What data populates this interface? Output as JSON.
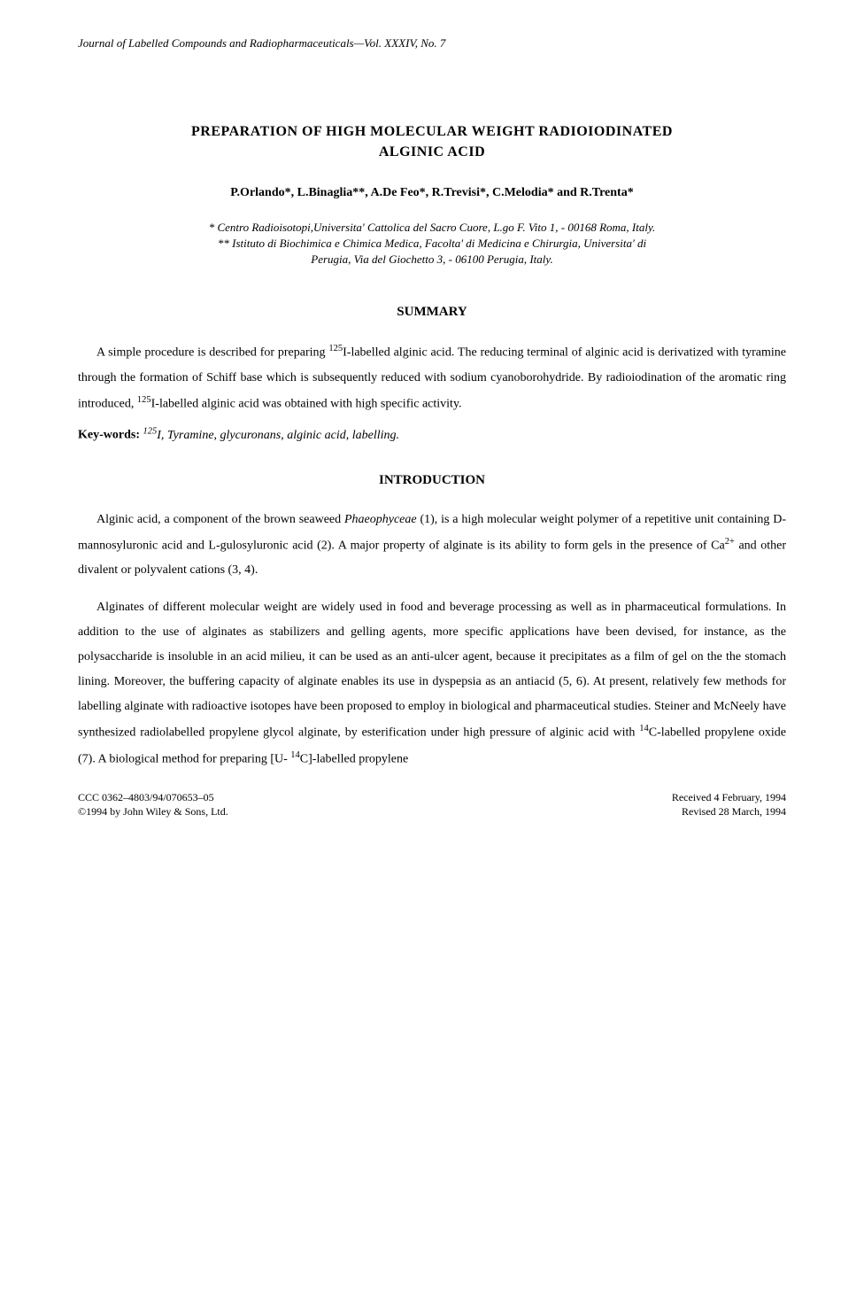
{
  "journal": {
    "header": "Journal of Labelled Compounds and Radiopharmaceuticals—Vol. XXXIV, No. 7"
  },
  "title": {
    "line1": "PREPARATION OF HIGH MOLECULAR WEIGHT RADIOIODINATED",
    "line2": "ALGINIC ACID"
  },
  "authors": "P.Orlando*, L.Binaglia**, A.De Feo*, R.Trevisi*, C.Melodia* and R.Trenta*",
  "affiliations": {
    "line1": "* Centro Radioisotopi,Universita' Cattolica del Sacro Cuore, L.go F. Vito 1, - 00168 Roma, Italy.",
    "line2": "** Istituto di Biochimica e Chimica Medica, Facolta' di Medicina e Chirurgia, Universita' di",
    "line3": "Perugia, Via del Giochetto 3, - 06100 Perugia, Italy."
  },
  "sections": {
    "summary": {
      "heading": "SUMMARY",
      "para1_html": "A simple procedure is described for preparing <sup>125</sup>I-labelled alginic acid. The reducing terminal of alginic acid is derivatized with tyramine through the formation of Schiff base which is subsequently reduced with sodium cyanoborohydride. By radioiodination of the aromatic ring introduced, <sup>125</sup>I-labelled alginic acid was obtained with high specific activity."
    },
    "keywords": {
      "label": "Key-words:",
      "text_html": "<sup>125</sup>I, Tyramine, glycuronans, alginic acid, labelling."
    },
    "introduction": {
      "heading": "INTRODUCTION",
      "para1_html": "Alginic acid, a component of the brown seaweed <i>Phaeophyceae</i> (1), is a high molecular weight polymer of a repetitive unit containing D-mannosyluronic acid and L-gulosyluronic acid (2). A major property of alginate is its ability to form gels in the presence of Ca<sup>2+</sup> and other divalent or polyvalent cations (3, 4).",
      "para2_html": "Alginates of different molecular weight are widely used in food and beverage processing as well as in pharmaceutical formulations. In addition to the use of alginates as stabilizers and gelling agents, more specific applications have been devised, for instance, as the polysaccharide is insoluble in an acid milieu, it can be used as an anti-ulcer agent, because it precipitates as a film of gel on the the stomach lining. Moreover, the buffering capacity of alginate enables its use in dyspepsia as an antiacid (5, 6). At present, relatively few methods for labelling alginate with radioactive isotopes have been proposed to employ in biological and pharmaceutical studies. Steiner and McNeely have synthesized radiolabelled propylene glycol alginate, by esterification under high pressure of alginic acid with <sup>14</sup>C-labelled propylene oxide (7). A biological method for preparing [U- <sup>14</sup>C]-labelled propylene"
    }
  },
  "footer": {
    "ccc": "CCC 0362–4803/94/070653–05",
    "copyright": "©1994 by John Wiley & Sons, Ltd.",
    "received": "Received 4 February, 1994",
    "revised": "Revised 28 March, 1994"
  },
  "style": {
    "background_color": "#ffffff",
    "text_color": "#000000",
    "font_family": "Times New Roman",
    "body_fontsize": 14,
    "title_fontsize": 16,
    "heading_fontsize": 15,
    "footer_fontsize": 12
  }
}
